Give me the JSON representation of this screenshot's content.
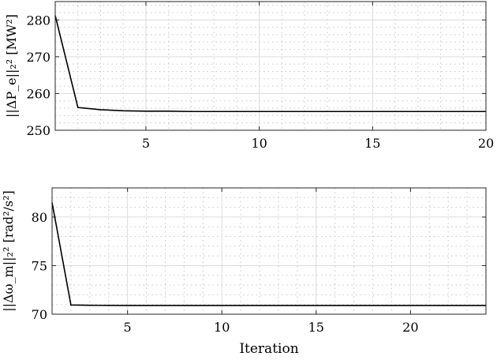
{
  "chart_data": [
    {
      "type": "line",
      "ylabel": "||ΔP_e||₂² [MW²]",
      "xlabel": "",
      "xlim": [
        1,
        20
      ],
      "ylim": [
        250,
        285
      ],
      "xticks": [
        5,
        10,
        15,
        20
      ],
      "yticks": [
        250,
        260,
        270,
        280
      ],
      "grid": true,
      "minor_grid": true,
      "series": [
        {
          "color": "#000000",
          "x": [
            1,
            2,
            3,
            4,
            5,
            6,
            7,
            8,
            9,
            10,
            11,
            12,
            13,
            14,
            15,
            16,
            17,
            18,
            19,
            20
          ],
          "y": [
            281.2,
            256.2,
            255.6,
            255.3,
            255.2,
            255.2,
            255.1,
            255.1,
            255.1,
            255.1,
            255.1,
            255.1,
            255.1,
            255.1,
            255.1,
            255.1,
            255.1,
            255.1,
            255.1,
            255.1
          ]
        }
      ]
    },
    {
      "type": "line",
      "ylabel": "||Δω_m||₂² [rad²/s²]",
      "xlabel": "Iteration",
      "xlim": [
        1,
        24
      ],
      "ylim": [
        70,
        83
      ],
      "xticks": [
        5,
        10,
        15,
        20
      ],
      "yticks": [
        70,
        75,
        80
      ],
      "grid": true,
      "minor_grid": true,
      "series": [
        {
          "color": "#000000",
          "x": [
            1,
            2,
            3,
            4,
            5,
            6,
            7,
            8,
            9,
            10,
            11,
            12,
            13,
            14,
            15,
            16,
            17,
            18,
            19,
            20,
            21,
            22,
            23,
            24
          ],
          "y": [
            81.5,
            70.95,
            70.92,
            70.91,
            70.9,
            70.9,
            70.9,
            70.9,
            70.9,
            70.9,
            70.9,
            70.9,
            70.9,
            70.9,
            70.9,
            70.9,
            70.9,
            70.9,
            70.9,
            70.9,
            70.9,
            70.9,
            70.9,
            70.9
          ]
        }
      ]
    }
  ]
}
